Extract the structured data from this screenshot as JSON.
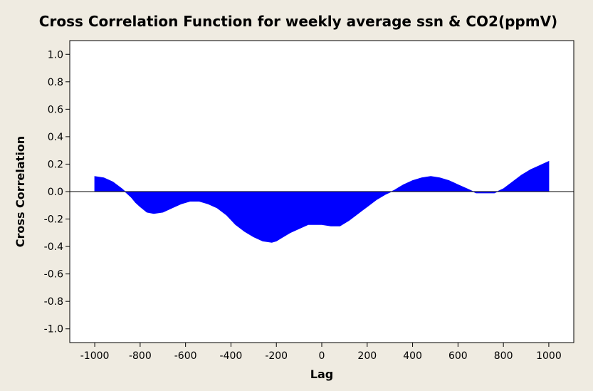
{
  "chart_data": {
    "type": "area",
    "title": "Cross Correlation Function for weekly average ssn & CO2(ppmV)",
    "xlabel": "Lag",
    "ylabel": "Cross Correlation",
    "xlim": [
      -1110,
      1110
    ],
    "ylim": [
      -1.1,
      1.1
    ],
    "x_ticks": [
      -1000,
      -800,
      -600,
      -400,
      -200,
      0,
      200,
      400,
      600,
      800,
      1000
    ],
    "x_tick_labels": [
      "-1000",
      "-800",
      "-600",
      "-400",
      "-200",
      "0",
      "200",
      "400",
      "600",
      "800",
      "1000"
    ],
    "y_ticks": [
      1.0,
      0.8,
      0.6,
      0.4,
      0.2,
      0.0,
      -0.2,
      -0.4,
      -0.6,
      -0.8,
      -1.0
    ],
    "y_tick_labels": [
      "1.0",
      "0.8",
      "0.6",
      "0.4",
      "0.2",
      "0.0",
      "-0.2",
      "-0.4",
      "-0.6",
      "-0.8",
      "-1.0"
    ],
    "reference_line_y": 0.0,
    "grid": false,
    "fill_color": "#0000ff",
    "series": [
      {
        "x": [
          -1000,
          -960,
          -920,
          -880,
          -860,
          -840,
          -820,
          -800,
          -770,
          -740,
          -700,
          -660,
          -620,
          -580,
          -540,
          -500,
          -460,
          -420,
          -380,
          -340,
          -300,
          -260,
          -220,
          -200,
          -180,
          -140,
          -100,
          -60,
          -20,
          0,
          40,
          80,
          120,
          160,
          200,
          240,
          280,
          320,
          340,
          360,
          400,
          440,
          480,
          520,
          560,
          600,
          640,
          680,
          720,
          760,
          800,
          840,
          880,
          920,
          960,
          1000
        ],
        "y": [
          0.11,
          0.1,
          0.07,
          0.02,
          -0.01,
          -0.04,
          -0.08,
          -0.11,
          -0.15,
          -0.16,
          -0.15,
          -0.12,
          -0.09,
          -0.07,
          -0.07,
          -0.09,
          -0.12,
          -0.17,
          -0.24,
          -0.29,
          -0.33,
          -0.36,
          -0.37,
          -0.36,
          -0.34,
          -0.3,
          -0.27,
          -0.24,
          -0.24,
          -0.24,
          -0.25,
          -0.25,
          -0.21,
          -0.16,
          -0.11,
          -0.06,
          -0.02,
          0.01,
          0.03,
          0.05,
          0.08,
          0.1,
          0.11,
          0.1,
          0.08,
          0.05,
          0.02,
          -0.01,
          -0.01,
          -0.01,
          0.02,
          0.07,
          0.12,
          0.16,
          0.19,
          0.22
        ]
      }
    ]
  }
}
